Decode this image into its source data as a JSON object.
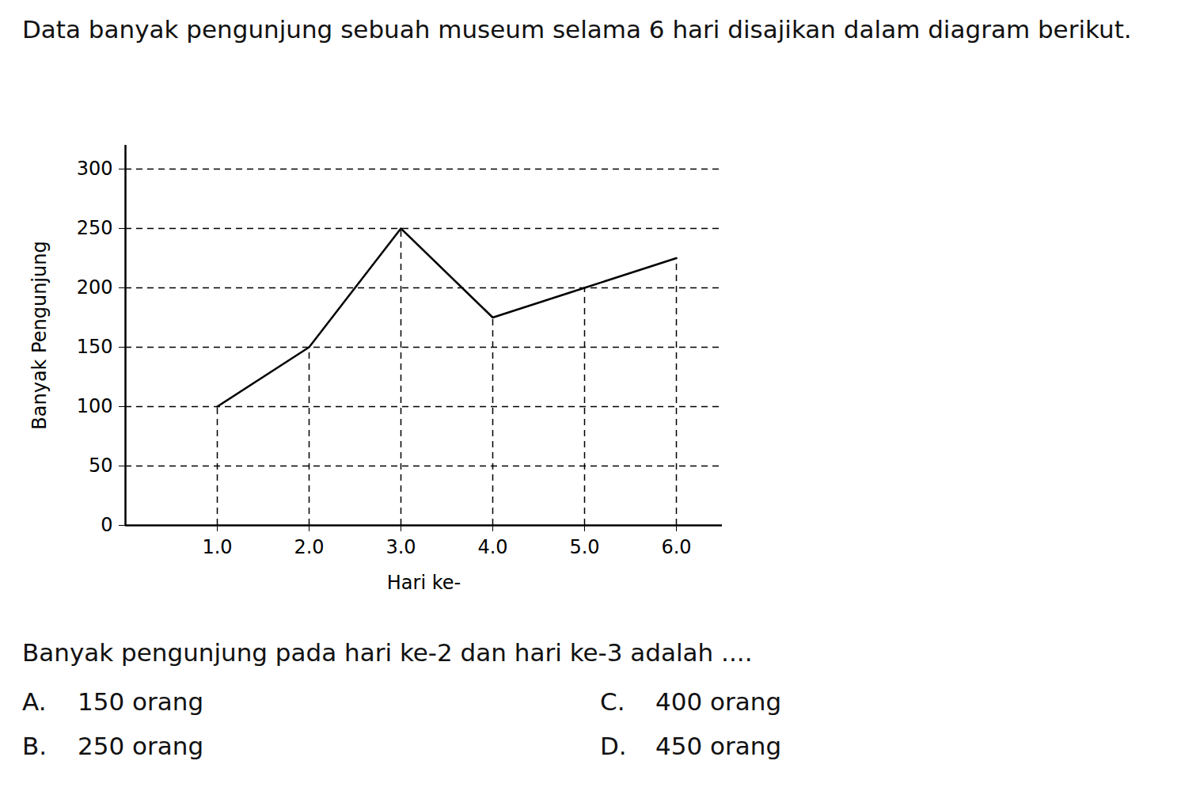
{
  "intro": "Data banyak pengunjung sebuah museum selama 6 hari disajikan dalam diagram berikut.",
  "chart_data": {
    "type": "line",
    "x_label": "Hari ke-",
    "y_label": "Banyak Pengunjung",
    "x": [
      1,
      2,
      3,
      4,
      5,
      6
    ],
    "values": [
      100,
      150,
      250,
      175,
      200,
      225
    ],
    "color": "#000000",
    "xlim": [
      0,
      6.5
    ],
    "xticks": [
      1,
      2,
      3,
      4,
      5,
      6
    ],
    "ylim": [
      0,
      320
    ],
    "yticks": [
      0,
      50,
      100,
      150,
      200,
      250,
      300
    ],
    "grid": true
  },
  "question": "Banyak pengunjung pada hari ke-2 dan hari ke-3 adalah ....",
  "options": [
    [
      "A.",
      "150 orang"
    ],
    [
      "C.",
      "400 orang"
    ],
    [
      "B.",
      "250 orang"
    ],
    [
      "D.",
      "450 orang"
    ]
  ]
}
